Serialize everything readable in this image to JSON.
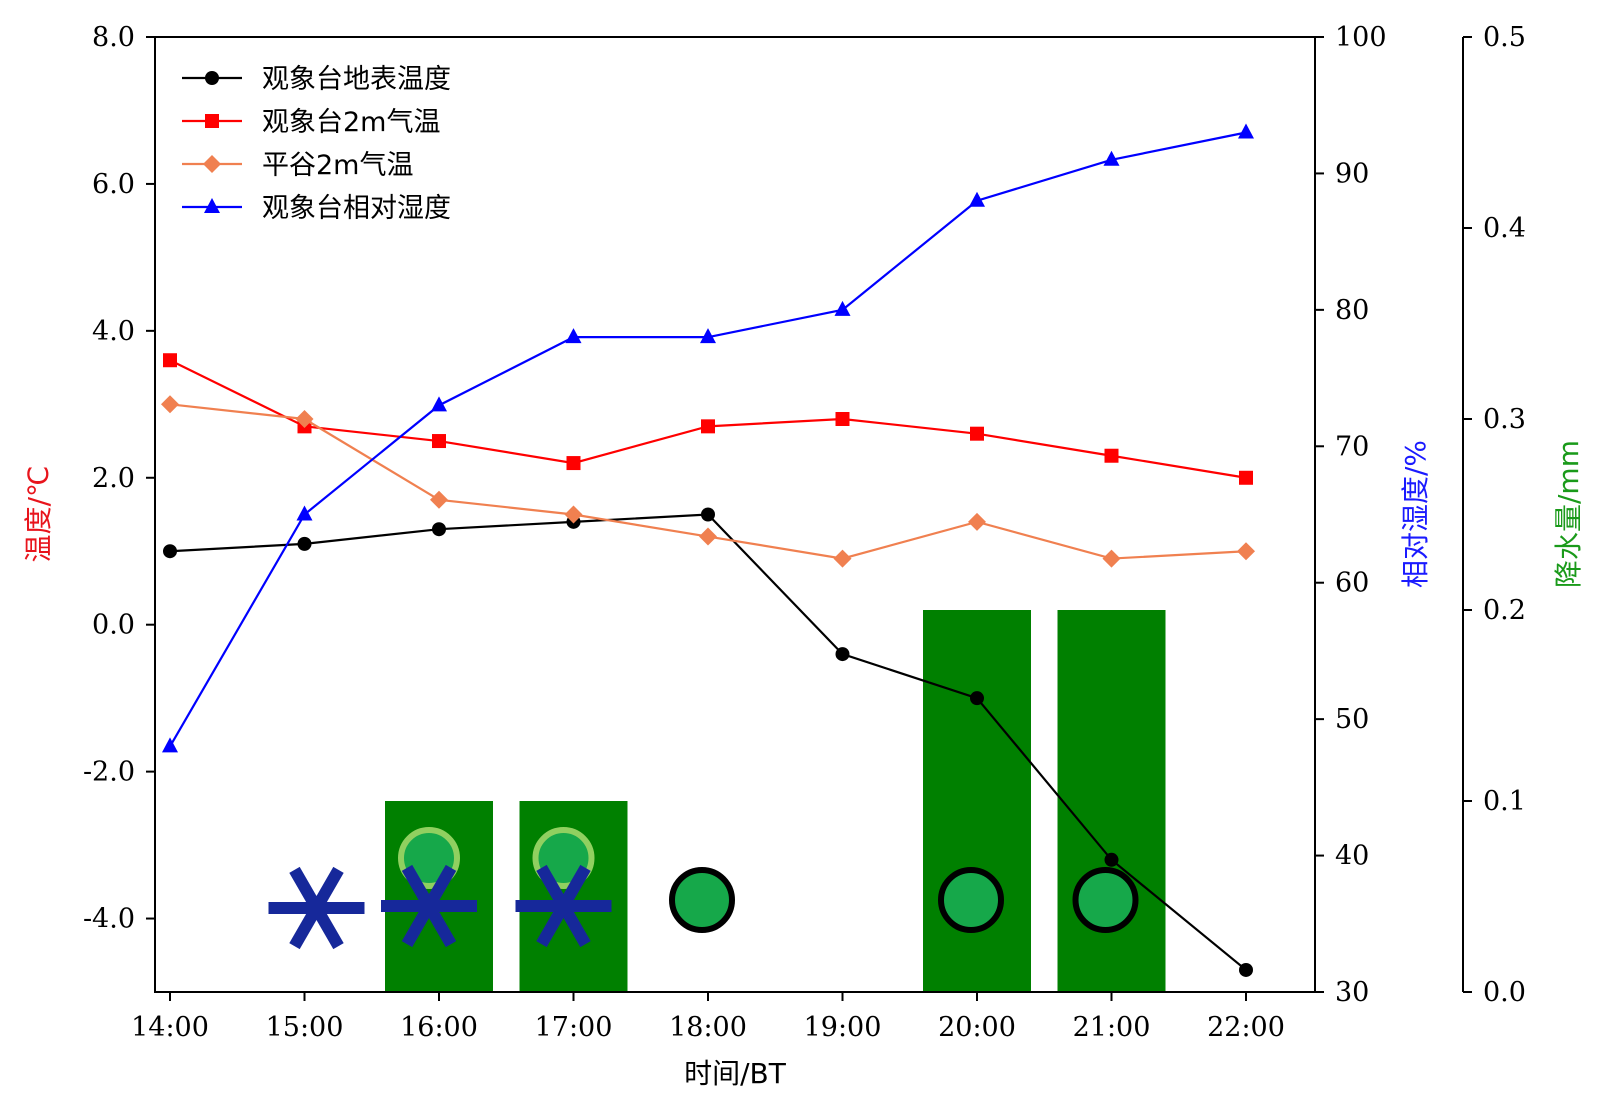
{
  "chart_data": {
    "type": "line",
    "x": [
      "14:00",
      "15:00",
      "16:00",
      "17:00",
      "18:00",
      "19:00",
      "20:00",
      "21:00",
      "22:00"
    ],
    "xlabel": "时间/BT",
    "y_left": {
      "label": "温度/℃",
      "label_color": "#e8141c",
      "lim": [
        -5.0,
        8.0
      ],
      "ticks": [
        "8.0",
        "6.0",
        "4.0",
        "2.0",
        "0.0",
        "-2.0",
        "-4.0"
      ],
      "tick_values": [
        8,
        6,
        4,
        2,
        0,
        -2,
        -4
      ]
    },
    "y_right": {
      "label": "相对湿度/%",
      "label_color": "#1a1aff",
      "lim": [
        30,
        100
      ],
      "ticks": [
        "100",
        "90",
        "80",
        "70",
        "60",
        "50",
        "40",
        "30"
      ],
      "tick_values": [
        100,
        90,
        80,
        70,
        60,
        50,
        40,
        30
      ]
    },
    "y_right2": {
      "label": "降水量/mm",
      "label_color": "#1a9a1a",
      "lim": [
        0.0,
        0.5
      ],
      "ticks": [
        "0.5",
        "0.4",
        "0.3",
        "0.2",
        "0.1",
        "0.0"
      ],
      "tick_values": [
        0.5,
        0.4,
        0.3,
        0.2,
        0.1,
        0.0
      ]
    },
    "series": [
      {
        "name": "观象台地表温度",
        "axis": "left",
        "marker": "circle",
        "color": "#000000",
        "values": [
          1.0,
          1.1,
          1.3,
          1.4,
          1.5,
          -0.4,
          -1.0,
          -3.2,
          -4.7
        ]
      },
      {
        "name": "观象台2m气温",
        "axis": "left",
        "marker": "square",
        "color": "#ff0000",
        "values": [
          3.6,
          2.7,
          2.5,
          2.2,
          2.7,
          2.8,
          2.6,
          2.3,
          2.0
        ]
      },
      {
        "name": "平谷2m气温",
        "axis": "left",
        "marker": "diamond",
        "color": "#f08050",
        "values": [
          3.0,
          2.8,
          1.7,
          1.5,
          1.2,
          0.9,
          1.4,
          0.9,
          1.0
        ]
      },
      {
        "name": "观象台相对湿度",
        "axis": "right",
        "marker": "triangle",
        "color": "#0000ff",
        "values": [
          48,
          65,
          73,
          78,
          78,
          80,
          88,
          91,
          93
        ]
      }
    ],
    "precipitation": {
      "color": "#008000",
      "x": [
        "16:00",
        "17:00",
        "20:00",
        "21:00"
      ],
      "values": [
        0.1,
        0.1,
        0.2,
        0.2
      ]
    },
    "weather_symbols": [
      {
        "x": "15:00",
        "type": "snow",
        "color": "#16289a"
      },
      {
        "x": "16:00",
        "type": "sleet",
        "color": "#16289a",
        "dot_color": "#16a84a",
        "ring_color": "#90d060"
      },
      {
        "x": "17:00",
        "type": "sleet",
        "color": "#16289a",
        "dot_color": "#16a84a",
        "ring_color": "#90d060"
      },
      {
        "x": "18:00",
        "type": "rain",
        "dot_color": "#16a84a",
        "ring_color": "#000000"
      },
      {
        "x": "20:00",
        "type": "rain",
        "dot_color": "#16a84a",
        "ring_color": "#000000"
      },
      {
        "x": "21:00",
        "type": "rain",
        "dot_color": "#16a84a",
        "ring_color": "#000000"
      }
    ],
    "legend_position": "top-left",
    "grid": false
  }
}
